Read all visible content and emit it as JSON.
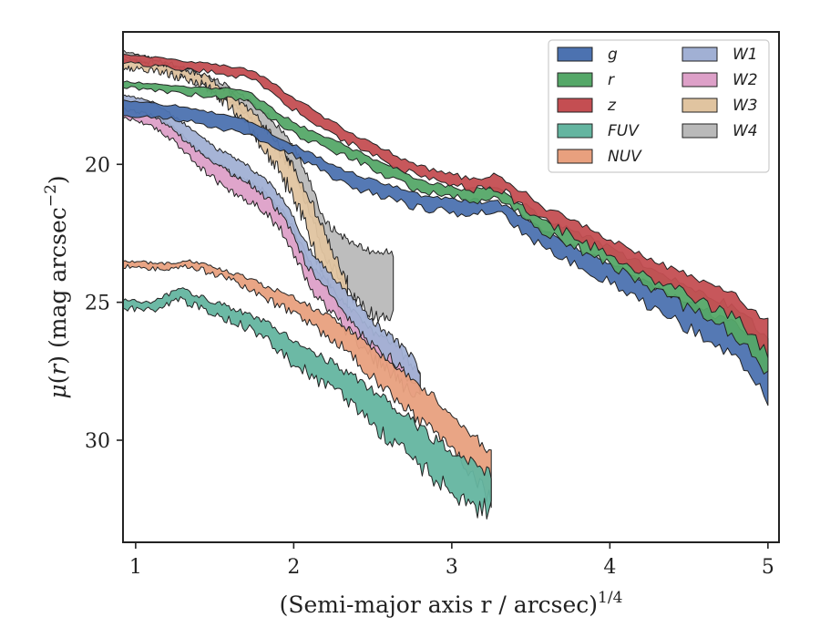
{
  "chart_data": {
    "type": "area",
    "xlabel": "(Semi-major axis r / arcsec)",
    "xlabel_sup": "1/4",
    "ylabel": "(mag arcsec",
    "ylabel_sup": "−2",
    "xlim": [
      0.92,
      5.07
    ],
    "ylim": [
      33.7,
      15.2
    ],
    "y_inverted": true,
    "xticks": [
      1,
      2,
      3,
      4,
      5
    ],
    "yticks": [
      20,
      25,
      30
    ],
    "grid": false,
    "legend_position": "top-right",
    "legend_columns": 2,
    "series": [
      {
        "name": "g",
        "color": "#4c72b0",
        "noise": 0.25,
        "upper": [
          [
            0.92,
            17.7
          ],
          [
            1.3,
            17.9
          ],
          [
            1.7,
            18.4
          ],
          [
            2.0,
            19.3
          ],
          [
            2.4,
            20.4
          ],
          [
            2.8,
            21.1
          ],
          [
            3.1,
            21.3
          ],
          [
            3.3,
            21.4
          ],
          [
            3.6,
            22.5
          ],
          [
            4.0,
            23.6
          ],
          [
            4.4,
            24.8
          ],
          [
            4.8,
            25.8
          ],
          [
            5.0,
            26.7
          ]
        ],
        "lower": [
          [
            0.92,
            18.2
          ],
          [
            1.3,
            18.4
          ],
          [
            1.7,
            18.9
          ],
          [
            2.0,
            19.7
          ],
          [
            2.4,
            20.9
          ],
          [
            2.8,
            21.6
          ],
          [
            3.1,
            21.8
          ],
          [
            3.3,
            21.8
          ],
          [
            3.6,
            23.1
          ],
          [
            4.0,
            24.3
          ],
          [
            4.4,
            25.6
          ],
          [
            4.8,
            27.0
          ],
          [
            5.0,
            28.5
          ]
        ]
      },
      {
        "name": "r",
        "color": "#55a868",
        "noise": 0.25,
        "upper": [
          [
            0.92,
            17.0
          ],
          [
            1.4,
            17.2
          ],
          [
            1.7,
            17.3
          ],
          [
            2.0,
            18.5
          ],
          [
            2.4,
            19.5
          ],
          [
            2.8,
            20.6
          ],
          [
            3.1,
            20.9
          ],
          [
            3.3,
            20.9
          ],
          [
            3.6,
            22.0
          ],
          [
            4.0,
            23.0
          ],
          [
            4.4,
            24.2
          ],
          [
            4.8,
            25.2
          ],
          [
            5.0,
            26.3
          ]
        ],
        "lower": [
          [
            0.92,
            17.2
          ],
          [
            1.4,
            17.5
          ],
          [
            1.7,
            17.7
          ],
          [
            2.0,
            18.9
          ],
          [
            2.4,
            19.9
          ],
          [
            2.8,
            21.0
          ],
          [
            3.1,
            21.3
          ],
          [
            3.3,
            21.3
          ],
          [
            3.6,
            22.5
          ],
          [
            4.0,
            23.6
          ],
          [
            4.4,
            24.9
          ],
          [
            4.8,
            26.2
          ],
          [
            5.0,
            27.7
          ]
        ]
      },
      {
        "name": "z",
        "color": "#c44e52",
        "noise": 0.25,
        "upper": [
          [
            0.92,
            16.0
          ],
          [
            1.4,
            16.3
          ],
          [
            1.75,
            16.6
          ],
          [
            2.0,
            17.6
          ],
          [
            2.4,
            19.0
          ],
          [
            2.8,
            20.1
          ],
          [
            3.1,
            20.5
          ],
          [
            3.3,
            20.4
          ],
          [
            3.6,
            21.6
          ],
          [
            4.0,
            22.7
          ],
          [
            4.4,
            23.8
          ],
          [
            4.8,
            24.8
          ],
          [
            5.0,
            25.7
          ]
        ],
        "lower": [
          [
            0.92,
            16.3
          ],
          [
            1.4,
            16.6
          ],
          [
            1.75,
            16.9
          ],
          [
            2.0,
            18.0
          ],
          [
            2.4,
            19.4
          ],
          [
            2.8,
            20.5
          ],
          [
            3.1,
            20.9
          ],
          [
            3.3,
            20.9
          ],
          [
            3.6,
            22.1
          ],
          [
            4.0,
            23.3
          ],
          [
            4.4,
            24.5
          ],
          [
            4.8,
            25.6
          ],
          [
            5.0,
            26.9
          ]
        ]
      },
      {
        "name": "FUV",
        "color": "#64b5a0",
        "noise": 0.4,
        "upper": [
          [
            0.92,
            24.9
          ],
          [
            1.1,
            25.0
          ],
          [
            1.28,
            24.5
          ],
          [
            1.5,
            25.0
          ],
          [
            1.8,
            25.6
          ],
          [
            2.0,
            26.4
          ],
          [
            2.3,
            27.4
          ],
          [
            2.6,
            28.6
          ],
          [
            2.9,
            30.0
          ],
          [
            3.1,
            30.7
          ],
          [
            3.25,
            31.2
          ]
        ],
        "lower": [
          [
            0.92,
            25.2
          ],
          [
            1.1,
            25.3
          ],
          [
            1.28,
            24.9
          ],
          [
            1.5,
            25.4
          ],
          [
            1.8,
            26.2
          ],
          [
            2.0,
            27.2
          ],
          [
            2.3,
            28.4
          ],
          [
            2.6,
            29.9
          ],
          [
            2.9,
            31.4
          ],
          [
            3.1,
            32.4
          ],
          [
            3.25,
            32.5
          ]
        ]
      },
      {
        "name": "NUV",
        "color": "#e8a07e",
        "noise": 0.3,
        "upper": [
          [
            0.92,
            23.5
          ],
          [
            1.2,
            23.6
          ],
          [
            1.35,
            23.5
          ],
          [
            1.6,
            23.9
          ],
          [
            2.0,
            24.8
          ],
          [
            2.3,
            25.8
          ],
          [
            2.6,
            27.1
          ],
          [
            2.9,
            28.5
          ],
          [
            3.1,
            29.6
          ],
          [
            3.25,
            30.5
          ]
        ],
        "lower": [
          [
            0.92,
            23.7
          ],
          [
            1.2,
            23.8
          ],
          [
            1.35,
            23.7
          ],
          [
            1.6,
            24.2
          ],
          [
            2.0,
            25.4
          ],
          [
            2.3,
            26.6
          ],
          [
            2.6,
            28.3
          ],
          [
            2.9,
            29.8
          ],
          [
            3.1,
            31.0
          ],
          [
            3.25,
            32.2
          ]
        ]
      },
      {
        "name": "W1",
        "color": "#a1b0d4",
        "noise": 0.25,
        "upper": [
          [
            0.92,
            17.5
          ],
          [
            1.1,
            17.7
          ],
          [
            1.2,
            18.1
          ],
          [
            1.35,
            18.7
          ],
          [
            1.5,
            19.4
          ],
          [
            1.7,
            20.0
          ],
          [
            1.85,
            20.7
          ],
          [
            1.95,
            21.4
          ],
          [
            2.1,
            23.1
          ],
          [
            2.3,
            24.4
          ],
          [
            2.5,
            25.7
          ],
          [
            2.65,
            26.4
          ],
          [
            2.75,
            27.0
          ],
          [
            2.8,
            27.5
          ]
        ],
        "lower": [
          [
            0.92,
            18.0
          ],
          [
            1.1,
            18.2
          ],
          [
            1.2,
            18.6
          ],
          [
            1.35,
            19.3
          ],
          [
            1.5,
            20.0
          ],
          [
            1.7,
            20.6
          ],
          [
            1.85,
            21.3
          ],
          [
            1.95,
            22.1
          ],
          [
            2.1,
            23.8
          ],
          [
            2.3,
            25.2
          ],
          [
            2.5,
            26.6
          ],
          [
            2.65,
            27.2
          ],
          [
            2.75,
            27.9
          ],
          [
            2.8,
            28.3
          ]
        ]
      },
      {
        "name": "W2",
        "color": "#dda0c8",
        "noise": 0.3,
        "upper": [
          [
            0.92,
            17.8
          ],
          [
            1.1,
            18.1
          ],
          [
            1.25,
            18.7
          ],
          [
            1.4,
            19.5
          ],
          [
            1.6,
            20.3
          ],
          [
            1.8,
            20.9
          ],
          [
            1.95,
            21.8
          ],
          [
            2.1,
            23.5
          ],
          [
            2.3,
            24.9
          ],
          [
            2.5,
            26.1
          ],
          [
            2.65,
            26.6
          ],
          [
            2.75,
            27.3
          ],
          [
            2.8,
            27.6
          ]
        ],
        "lower": [
          [
            0.92,
            18.3
          ],
          [
            1.1,
            18.6
          ],
          [
            1.25,
            19.2
          ],
          [
            1.4,
            20.1
          ],
          [
            1.6,
            21.0
          ],
          [
            1.8,
            21.6
          ],
          [
            1.95,
            22.6
          ],
          [
            2.1,
            24.4
          ],
          [
            2.3,
            25.8
          ],
          [
            2.5,
            27.0
          ],
          [
            2.65,
            27.7
          ],
          [
            2.75,
            28.4
          ],
          [
            2.8,
            28.5
          ]
        ]
      },
      {
        "name": "W3",
        "color": "#e0c4a0",
        "noise": 0.4,
        "upper": [
          [
            0.92,
            16.2
          ],
          [
            1.2,
            16.4
          ],
          [
            1.45,
            16.8
          ],
          [
            1.6,
            17.4
          ],
          [
            1.75,
            18.2
          ],
          [
            1.9,
            19.2
          ],
          [
            2.0,
            20.1
          ],
          [
            2.1,
            21.2
          ],
          [
            2.2,
            22.5
          ],
          [
            2.28,
            23.6
          ],
          [
            2.34,
            24.2
          ]
        ],
        "lower": [
          [
            0.92,
            16.5
          ],
          [
            1.2,
            16.7
          ],
          [
            1.45,
            17.2
          ],
          [
            1.6,
            17.9
          ],
          [
            1.75,
            18.9
          ],
          [
            1.9,
            20.2
          ],
          [
            2.0,
            21.2
          ],
          [
            2.1,
            22.6
          ],
          [
            2.2,
            24.2
          ],
          [
            2.28,
            25.1
          ],
          [
            2.34,
            25.7
          ]
        ]
      },
      {
        "name": "W4",
        "color": "#b9b9b9",
        "noise": 0.3,
        "upper": [
          [
            0.92,
            15.9
          ],
          [
            1.2,
            16.3
          ],
          [
            1.5,
            16.9
          ],
          [
            1.7,
            17.6
          ],
          [
            1.85,
            18.3
          ],
          [
            2.0,
            19.3
          ],
          [
            2.1,
            20.6
          ],
          [
            2.2,
            22.1
          ],
          [
            2.3,
            22.6
          ],
          [
            2.45,
            23.1
          ],
          [
            2.55,
            23.2
          ],
          [
            2.63,
            23.2
          ]
        ],
        "lower": [
          [
            0.92,
            16.1
          ],
          [
            1.2,
            16.6
          ],
          [
            1.5,
            17.3
          ],
          [
            1.7,
            18.2
          ],
          [
            1.85,
            19.1
          ],
          [
            2.0,
            20.2
          ],
          [
            2.1,
            21.7
          ],
          [
            2.2,
            23.3
          ],
          [
            2.3,
            24.3
          ],
          [
            2.45,
            25.3
          ],
          [
            2.55,
            25.5
          ],
          [
            2.63,
            25.5
          ]
        ]
      }
    ]
  }
}
